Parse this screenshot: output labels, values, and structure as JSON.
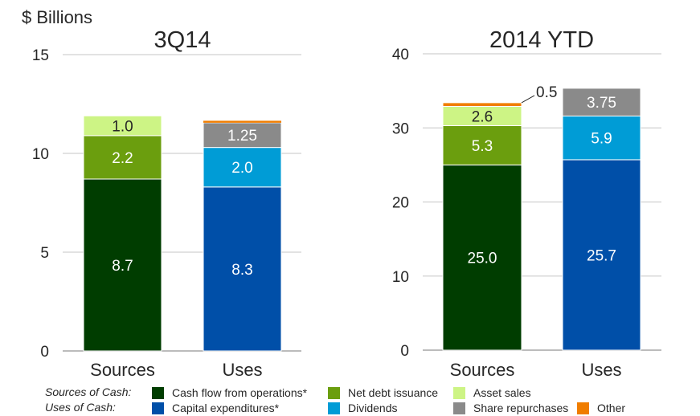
{
  "unit_label": "$ Billions",
  "colors": {
    "cash_flow_ops": "#003d00",
    "net_debt": "#6b9e0e",
    "asset_sales": "#cdf485",
    "capex": "#004fa8",
    "dividends": "#009cd6",
    "share_repurchases": "#8a8a8a",
    "other": "#f07d00",
    "grid": "#d0d0d0",
    "axis": "#a6a6a6"
  },
  "chart_data": [
    {
      "type": "bar",
      "stacked": true,
      "title": "3Q14",
      "ylabel": "$ Billions",
      "ylim": [
        0,
        15
      ],
      "yticks": [
        0,
        5,
        10,
        15
      ],
      "grid": true,
      "categories": [
        "Sources",
        "Uses"
      ],
      "bars": [
        {
          "category": "Sources",
          "segments": [
            {
              "series": "Cash flow from operations*",
              "key": "cash_flow_ops",
              "value": 8.7,
              "label": "8.7",
              "label_color": "#ffffff"
            },
            {
              "series": "Net debt issuance",
              "key": "net_debt",
              "value": 2.2,
              "label": "2.2",
              "label_color": "#ffffff"
            },
            {
              "series": "Asset sales",
              "key": "asset_sales",
              "value": 1.0,
              "label": "1.0",
              "label_color": "#262626"
            }
          ]
        },
        {
          "category": "Uses",
          "segments": [
            {
              "series": "Capital expenditures*",
              "key": "capex",
              "value": 8.3,
              "label": "8.3",
              "label_color": "#ffffff"
            },
            {
              "series": "Dividends",
              "key": "dividends",
              "value": 2.0,
              "label": "2.0",
              "label_color": "#ffffff"
            },
            {
              "series": "Share repurchases",
              "key": "share_repurchases",
              "value": 1.25,
              "label": "1.25",
              "label_color": "#ffffff"
            },
            {
              "series": "Other",
              "key": "other",
              "value": 0.1,
              "label": "",
              "label_color": "#262626"
            }
          ]
        }
      ]
    },
    {
      "type": "bar",
      "stacked": true,
      "title": "2014 YTD",
      "ylabel": "$ Billions",
      "ylim": [
        0,
        40
      ],
      "yticks": [
        0,
        10,
        20,
        30,
        40
      ],
      "grid": true,
      "categories": [
        "Sources",
        "Uses"
      ],
      "bars": [
        {
          "category": "Sources",
          "segments": [
            {
              "series": "Cash flow from operations*",
              "key": "cash_flow_ops",
              "value": 25.0,
              "label": "25.0",
              "label_color": "#ffffff"
            },
            {
              "series": "Net debt issuance",
              "key": "net_debt",
              "value": 5.3,
              "label": "5.3",
              "label_color": "#ffffff"
            },
            {
              "series": "Asset sales",
              "key": "asset_sales",
              "value": 2.6,
              "label": "2.6",
              "label_color": "#262626"
            },
            {
              "series": "Other",
              "key": "other",
              "value": 0.5,
              "label": "",
              "callout": "0.5",
              "label_color": "#262626"
            }
          ]
        },
        {
          "category": "Uses",
          "segments": [
            {
              "series": "Capital expenditures*",
              "key": "capex",
              "value": 25.7,
              "label": "25.7",
              "label_color": "#ffffff"
            },
            {
              "series": "Dividends",
              "key": "dividends",
              "value": 5.9,
              "label": "5.9",
              "label_color": "#ffffff"
            },
            {
              "series": "Share repurchases",
              "key": "share_repurchases",
              "value": 3.75,
              "label": "3.75",
              "label_color": "#ffffff"
            }
          ]
        }
      ]
    }
  ],
  "legend": {
    "sources_label": "Sources of Cash:",
    "uses_label": "Uses of Cash:",
    "sources_items": [
      {
        "label": "Cash flow from operations*",
        "key": "cash_flow_ops"
      },
      {
        "label": "Net debt issuance",
        "key": "net_debt"
      },
      {
        "label": "Asset sales",
        "key": "asset_sales"
      }
    ],
    "uses_items": [
      {
        "label": "Capital expenditures*",
        "key": "capex"
      },
      {
        "label": "Dividends",
        "key": "dividends"
      },
      {
        "label": "Share repurchases",
        "key": "share_repurchases"
      },
      {
        "label": "Other",
        "key": "other"
      }
    ]
  }
}
